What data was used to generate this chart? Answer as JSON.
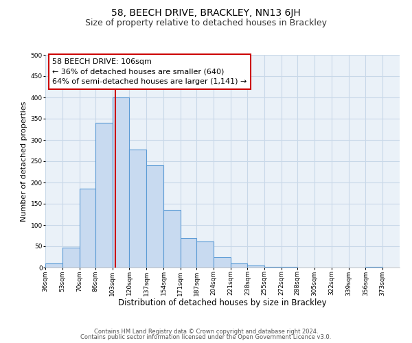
{
  "title": "58, BEECH DRIVE, BRACKLEY, NN13 6JH",
  "subtitle": "Size of property relative to detached houses in Brackley",
  "xlabel": "Distribution of detached houses by size in Brackley",
  "ylabel": "Number of detached properties",
  "bar_left_edges": [
    36,
    53,
    70,
    86,
    103,
    120,
    137,
    154,
    171,
    187,
    204,
    221,
    238,
    255,
    272,
    288,
    305,
    322,
    339,
    356
  ],
  "bar_widths": [
    17,
    17,
    16,
    17,
    17,
    17,
    17,
    17,
    16,
    17,
    17,
    17,
    17,
    17,
    16,
    17,
    17,
    17,
    17,
    17
  ],
  "bar_heights": [
    10,
    47,
    185,
    340,
    400,
    278,
    240,
    135,
    70,
    62,
    25,
    10,
    5,
    2,
    1,
    0,
    0,
    0,
    0,
    2
  ],
  "bar_color": "#c8daf0",
  "bar_edge_color": "#5b9bd5",
  "bar_edge_width": 0.8,
  "grid_color": "#c8d8e8",
  "bg_color": "#eaf1f8",
  "vline_x": 106,
  "vline_color": "#cc0000",
  "annotation_line1": "58 BEECH DRIVE: 106sqm",
  "annotation_line2": "← 36% of detached houses are smaller (640)",
  "annotation_line3": "64% of semi-detached houses are larger (1,141) →",
  "annotation_box_color": "#cc0000",
  "tick_labels": [
    "36sqm",
    "53sqm",
    "70sqm",
    "86sqm",
    "103sqm",
    "120sqm",
    "137sqm",
    "154sqm",
    "171sqm",
    "187sqm",
    "204sqm",
    "221sqm",
    "238sqm",
    "255sqm",
    "272sqm",
    "288sqm",
    "305sqm",
    "322sqm",
    "339sqm",
    "356sqm",
    "373sqm"
  ],
  "ylim": [
    0,
    500
  ],
  "yticks": [
    0,
    50,
    100,
    150,
    200,
    250,
    300,
    350,
    400,
    450,
    500
  ],
  "footer1": "Contains HM Land Registry data © Crown copyright and database right 2024.",
  "footer2": "Contains public sector information licensed under the Open Government Licence v3.0.",
  "title_fontsize": 10,
  "subtitle_fontsize": 9,
  "xlabel_fontsize": 8.5,
  "ylabel_fontsize": 8,
  "tick_fontsize": 6.5,
  "footer_fontsize": 6,
  "annotation_fontsize": 8
}
